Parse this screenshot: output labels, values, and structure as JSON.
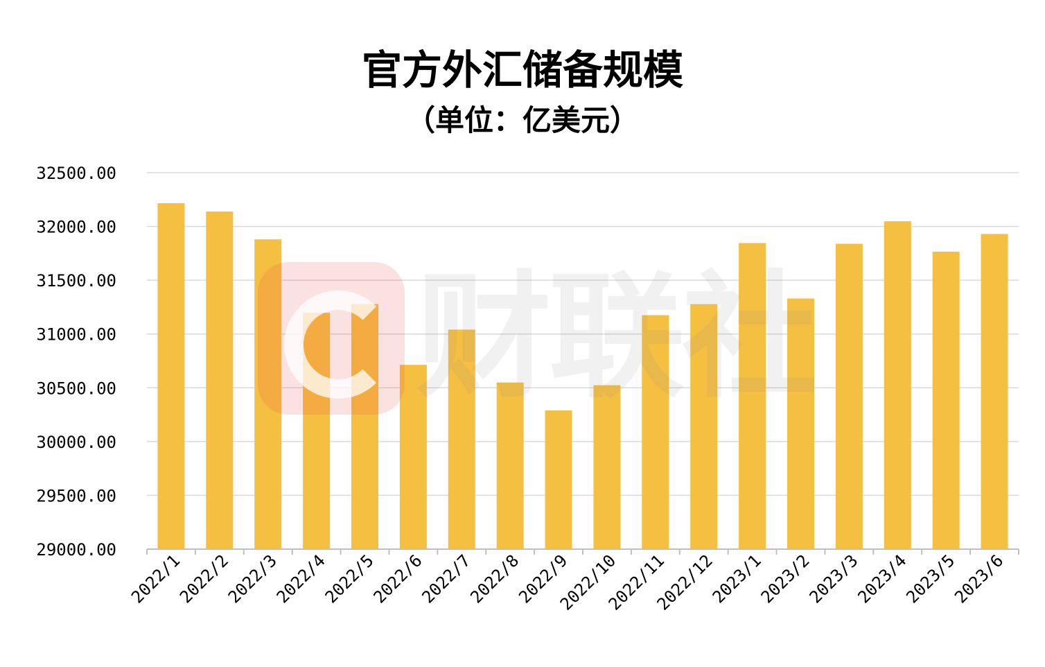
{
  "chart_data": {
    "type": "bar",
    "title": "官方外汇储备规模",
    "subtitle": "（单位：亿美元）",
    "xlabel": "",
    "ylabel": "",
    "categories": [
      "2022/1",
      "2022/2",
      "2022/3",
      "2022/4",
      "2022/5",
      "2022/6",
      "2022/7",
      "2022/8",
      "2022/9",
      "2022/10",
      "2022/11",
      "2022/12",
      "2023/1",
      "2023/2",
      "2023/3",
      "2023/4",
      "2023/5",
      "2023/6"
    ],
    "values": [
      32216,
      32138,
      31880,
      31197,
      31278,
      30713,
      31041,
      30549,
      30290,
      30524,
      31175,
      31277,
      31845,
      31330,
      31839,
      32048,
      31765,
      31930
    ],
    "ylim": [
      29000,
      32500
    ],
    "yticks": [
      "29000.00",
      "29500.00",
      "30000.00",
      "30500.00",
      "31000.00",
      "31500.00",
      "32000.00",
      "32500.00"
    ],
    "ytick_values": [
      29000,
      29500,
      30000,
      30500,
      31000,
      31500,
      32000,
      32500
    ],
    "grid": true,
    "legend": "none",
    "colors": {
      "bar": "#F5BF42",
      "grid": "#D9D9D9",
      "axis": "#BFBFBF"
    }
  },
  "watermark": {
    "text": "财联社"
  }
}
